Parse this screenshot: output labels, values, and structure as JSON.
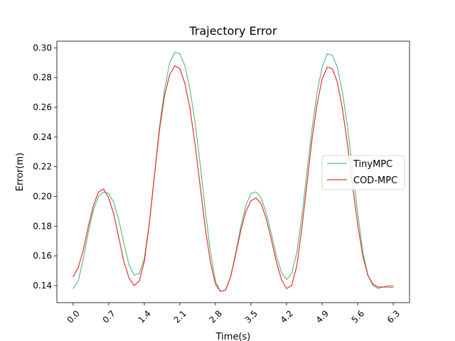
{
  "chart_data": {
    "type": "line",
    "title": "Trajectory Error",
    "xlabel": "Time(s)",
    "ylabel": "Error(m)",
    "xlim": [
      -0.32,
      6.62
    ],
    "ylim": [
      0.1285,
      0.3045
    ],
    "x_ticks": [
      0.0,
      0.7,
      1.4,
      2.1,
      2.8,
      3.5,
      4.2,
      4.9,
      5.6,
      6.3
    ],
    "x_tick_labels": [
      "0.0",
      "0.7",
      "1.4",
      "2.1",
      "2.8",
      "3.5",
      "4.2",
      "4.9",
      "5.6",
      "6.3"
    ],
    "x_tick_rotation": 45,
    "y_ticks": [
      0.14,
      0.16,
      0.18,
      0.2,
      0.22,
      0.24,
      0.26,
      0.28,
      0.3
    ],
    "y_tick_labels": [
      "0.14",
      "0.16",
      "0.18",
      "0.20",
      "0.22",
      "0.24",
      "0.26",
      "0.28",
      "0.30"
    ],
    "grid": false,
    "legend_position": "center-right",
    "series": [
      {
        "name": "TinyMPC",
        "color": "#5bbd85",
        "x": [
          0.0,
          0.1,
          0.2,
          0.3,
          0.4,
          0.5,
          0.6,
          0.7,
          0.8,
          0.9,
          1.0,
          1.1,
          1.2,
          1.3,
          1.4,
          1.5,
          1.6,
          1.7,
          1.8,
          1.9,
          2.0,
          2.1,
          2.2,
          2.3,
          2.4,
          2.5,
          2.6,
          2.7,
          2.8,
          2.9,
          3.0,
          3.1,
          3.2,
          3.3,
          3.4,
          3.5,
          3.6,
          3.7,
          3.8,
          3.9,
          4.0,
          4.1,
          4.2,
          4.3,
          4.4,
          4.5,
          4.6,
          4.7,
          4.8,
          4.9,
          5.0,
          5.1,
          5.2,
          5.3,
          5.4,
          5.5,
          5.6,
          5.7,
          5.8,
          5.9,
          6.0,
          6.1,
          6.2,
          6.3
        ],
        "values": [
          0.138,
          0.143,
          0.158,
          0.176,
          0.191,
          0.2,
          0.203,
          0.202,
          0.196,
          0.184,
          0.168,
          0.154,
          0.147,
          0.148,
          0.158,
          0.182,
          0.214,
          0.247,
          0.272,
          0.29,
          0.297,
          0.296,
          0.288,
          0.272,
          0.25,
          0.222,
          0.191,
          0.163,
          0.143,
          0.136,
          0.137,
          0.146,
          0.162,
          0.18,
          0.194,
          0.202,
          0.203,
          0.199,
          0.189,
          0.175,
          0.16,
          0.149,
          0.144,
          0.148,
          0.162,
          0.186,
          0.216,
          0.245,
          0.27,
          0.287,
          0.296,
          0.295,
          0.287,
          0.27,
          0.247,
          0.218,
          0.189,
          0.163,
          0.147,
          0.14,
          0.138,
          0.139,
          0.14,
          0.14
        ]
      },
      {
        "name": "COD-MPC",
        "color": "#e8302f",
        "x": [
          0.0,
          0.1,
          0.2,
          0.3,
          0.4,
          0.5,
          0.6,
          0.7,
          0.8,
          0.9,
          1.0,
          1.1,
          1.2,
          1.3,
          1.4,
          1.5,
          1.6,
          1.7,
          1.8,
          1.9,
          2.0,
          2.1,
          2.2,
          2.3,
          2.4,
          2.5,
          2.6,
          2.7,
          2.8,
          2.9,
          3.0,
          3.1,
          3.2,
          3.3,
          3.4,
          3.5,
          3.6,
          3.7,
          3.8,
          3.9,
          4.0,
          4.1,
          4.2,
          4.3,
          4.4,
          4.5,
          4.6,
          4.7,
          4.8,
          4.9,
          5.0,
          5.1,
          5.2,
          5.3,
          5.4,
          5.5,
          5.6,
          5.7,
          5.8,
          5.9,
          6.0,
          6.1,
          6.2,
          6.3
        ],
        "values": [
          0.146,
          0.152,
          0.164,
          0.18,
          0.194,
          0.203,
          0.205,
          0.199,
          0.188,
          0.172,
          0.156,
          0.145,
          0.14,
          0.143,
          0.156,
          0.182,
          0.214,
          0.245,
          0.268,
          0.282,
          0.288,
          0.286,
          0.276,
          0.259,
          0.235,
          0.207,
          0.179,
          0.156,
          0.141,
          0.136,
          0.137,
          0.146,
          0.161,
          0.177,
          0.19,
          0.197,
          0.199,
          0.195,
          0.185,
          0.171,
          0.156,
          0.144,
          0.138,
          0.14,
          0.153,
          0.178,
          0.208,
          0.238,
          0.262,
          0.279,
          0.287,
          0.286,
          0.277,
          0.259,
          0.235,
          0.207,
          0.181,
          0.16,
          0.147,
          0.141,
          0.139,
          0.139,
          0.139,
          0.139
        ]
      }
    ]
  }
}
